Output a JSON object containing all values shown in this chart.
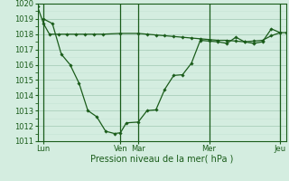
{
  "xlabel": "Pression niveau de la mer( hPa )",
  "ylim": [
    1011,
    1020
  ],
  "xlim": [
    0,
    168
  ],
  "yticks": [
    1011,
    1012,
    1013,
    1014,
    1015,
    1016,
    1017,
    1018,
    1019,
    1020
  ],
  "background_color": "#d4ede0",
  "line_color": "#1a5c1a",
  "grid_color_major": "#aacfba",
  "grid_color_minor": "#c4e4d4",
  "vline_color": "#1a5c1a",
  "tick_color": "#1a5c1a",
  "day_labels": [
    "Lun",
    "Ven",
    "Mar",
    "Mer",
    "Jeu"
  ],
  "day_positions": [
    4,
    56,
    68,
    116,
    164
  ],
  "series1_x": [
    0,
    4,
    8,
    14,
    20,
    26,
    32,
    38,
    44,
    56,
    68,
    74,
    80,
    86,
    92,
    98,
    104,
    110,
    116,
    122,
    128,
    134,
    140,
    146,
    152,
    158,
    164,
    168
  ],
  "series1_y": [
    1019.8,
    1018.7,
    1018.0,
    1018.0,
    1018.0,
    1018.0,
    1018.0,
    1018.0,
    1018.0,
    1018.05,
    1018.05,
    1018.0,
    1017.95,
    1017.9,
    1017.85,
    1017.8,
    1017.75,
    1017.7,
    1017.65,
    1017.6,
    1017.6,
    1017.55,
    1017.5,
    1017.55,
    1017.6,
    1017.9,
    1018.1,
    1018.1
  ],
  "series2_x": [
    4,
    10,
    16,
    22,
    28,
    34,
    40,
    46,
    52,
    56,
    60,
    68,
    74,
    80,
    86,
    92,
    98,
    104,
    110,
    116,
    122,
    128,
    134,
    140,
    146,
    152,
    158,
    164
  ],
  "series2_y": [
    1019.0,
    1018.7,
    1016.7,
    1016.0,
    1014.8,
    1013.0,
    1012.6,
    1011.65,
    1011.5,
    1011.55,
    1012.2,
    1012.25,
    1013.0,
    1013.05,
    1014.4,
    1015.3,
    1015.35,
    1016.1,
    1017.6,
    1017.55,
    1017.5,
    1017.4,
    1017.8,
    1017.5,
    1017.4,
    1017.5,
    1018.35,
    1018.1
  ]
}
